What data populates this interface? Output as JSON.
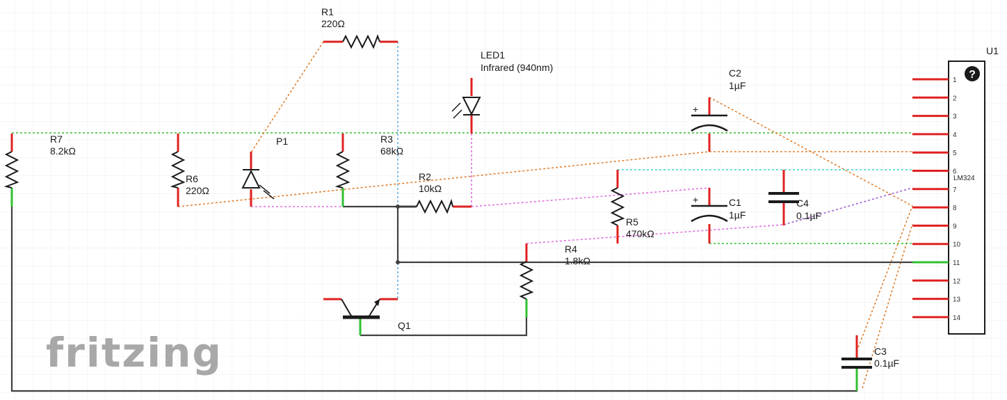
{
  "components": {
    "r1": {
      "ref": "R1",
      "value": "220Ω"
    },
    "r2": {
      "ref": "R2",
      "value": "10kΩ"
    },
    "r3": {
      "ref": "R3",
      "value": "68kΩ"
    },
    "r4": {
      "ref": "R4",
      "value": "1.8kΩ"
    },
    "r5": {
      "ref": "R5",
      "value": "470kΩ"
    },
    "r6": {
      "ref": "R6",
      "value": "220Ω"
    },
    "r7": {
      "ref": "R7",
      "value": "8.2kΩ"
    },
    "led1": {
      "ref": "LED1",
      "value": "Infrared (940nm)"
    },
    "c1": {
      "ref": "C1",
      "value": "1µF"
    },
    "c2": {
      "ref": "C2",
      "value": "1µF"
    },
    "c3": {
      "ref": "C3",
      "value": "0.1µF"
    },
    "c4": {
      "ref": "C4",
      "value": "0.1µF"
    },
    "p1": {
      "ref": "P1"
    },
    "q1": {
      "ref": "Q1"
    },
    "u1": {
      "ref": "U1",
      "part": "LM324",
      "pins": [
        "1",
        "2",
        "3",
        "4",
        "5",
        "6",
        "7",
        "8",
        "9",
        "10",
        "11",
        "12",
        "13",
        "14"
      ]
    }
  },
  "pin_labels": {
    "one": "1",
    "two": "2"
  },
  "capacitor_polarity": "+",
  "help_glyph": "?",
  "watermark": "fritzing",
  "colors": {
    "pin_red": "#e02020",
    "pin_green": "#30c030",
    "wire": "#404040",
    "rats_green": "#30c030",
    "rats_orange": "#e08030",
    "rats_pink": "#e070e0",
    "rats_blue": "#60b0e0",
    "rats_cyan": "#40d0d0",
    "grid": "#ececec"
  }
}
